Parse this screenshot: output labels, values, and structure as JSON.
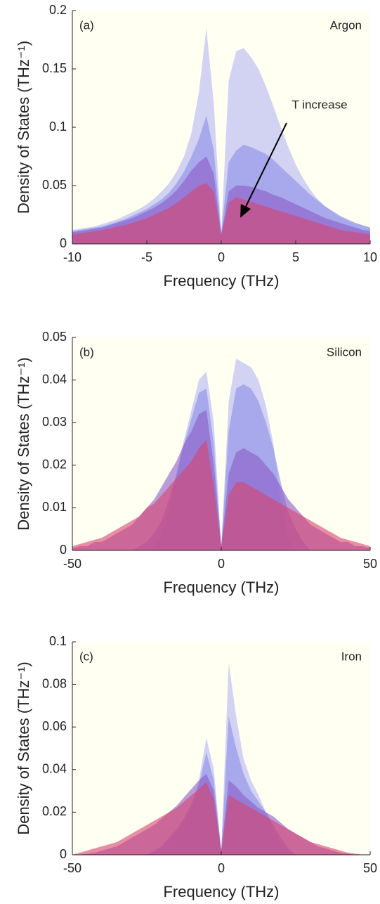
{
  "chart_data": [
    {
      "type": "area",
      "label": "(a)",
      "title": "Argon",
      "annotations": [
        "T increase"
      ],
      "xlabel": "Frequency (THz)",
      "ylabel": "Density of States (THz⁻¹)",
      "xlim": [
        -10,
        10
      ],
      "xticks": [
        -10,
        -5,
        0,
        5,
        10
      ],
      "ylim": [
        0,
        0.2
      ],
      "yticks": [
        0,
        0.05,
        0.1,
        0.15,
        0.2
      ],
      "opacity": 0.6,
      "x": [
        -10,
        -9.5,
        -9,
        -8.5,
        -8,
        -7.5,
        -7,
        -6.5,
        -6,
        -5.5,
        -5,
        -4.5,
        -4,
        -3.5,
        -3,
        -2.5,
        -2,
        -1.5,
        -1,
        -0.5,
        0,
        0.5,
        1,
        1.5,
        2,
        2.5,
        3,
        3.5,
        4,
        4.5,
        5,
        5.5,
        6,
        6.5,
        7,
        7.5,
        8,
        8.5,
        9,
        9.5,
        10
      ],
      "series": [
        {
          "color": "#b4b4f4",
          "values": [
            0.012,
            0.013,
            0.014,
            0.015,
            0.017,
            0.019,
            0.021,
            0.024,
            0.027,
            0.03,
            0.034,
            0.039,
            0.045,
            0.052,
            0.062,
            0.075,
            0.095,
            0.13,
            0.185,
            0.12,
            0.01,
            0.14,
            0.165,
            0.168,
            0.16,
            0.15,
            0.135,
            0.118,
            0.1,
            0.083,
            0.068,
            0.056,
            0.046,
            0.038,
            0.032,
            0.027,
            0.023,
            0.02,
            0.018,
            0.016,
            0.014
          ]
        },
        {
          "color": "#8c8ce8",
          "values": [
            0.011,
            0.012,
            0.013,
            0.014,
            0.015,
            0.017,
            0.019,
            0.021,
            0.024,
            0.027,
            0.03,
            0.034,
            0.038,
            0.044,
            0.052,
            0.062,
            0.075,
            0.09,
            0.11,
            0.08,
            0.01,
            0.07,
            0.08,
            0.085,
            0.083,
            0.08,
            0.077,
            0.072,
            0.066,
            0.06,
            0.054,
            0.048,
            0.042,
            0.037,
            0.032,
            0.028,
            0.024,
            0.021,
            0.018,
            0.016,
            0.014
          ]
        },
        {
          "color": "#8a5cc8",
          "values": [
            0.01,
            0.011,
            0.012,
            0.013,
            0.014,
            0.016,
            0.018,
            0.02,
            0.022,
            0.025,
            0.028,
            0.031,
            0.035,
            0.04,
            0.046,
            0.054,
            0.063,
            0.07,
            0.075,
            0.06,
            0.008,
            0.045,
            0.05,
            0.05,
            0.049,
            0.047,
            0.045,
            0.042,
            0.04,
            0.037,
            0.034,
            0.031,
            0.028,
            0.025,
            0.022,
            0.02,
            0.018,
            0.016,
            0.014,
            0.012,
            0.011
          ]
        },
        {
          "color": "#d9436e",
          "values": [
            0.008,
            0.009,
            0.01,
            0.011,
            0.012,
            0.013,
            0.015,
            0.016,
            0.018,
            0.02,
            0.022,
            0.025,
            0.028,
            0.031,
            0.035,
            0.04,
            0.045,
            0.05,
            0.052,
            0.045,
            0.008,
            0.035,
            0.04,
            0.038,
            0.036,
            0.034,
            0.032,
            0.03,
            0.028,
            0.026,
            0.024,
            0.022,
            0.02,
            0.018,
            0.016,
            0.014,
            0.012,
            0.011,
            0.01,
            0.009,
            0.008
          ]
        }
      ]
    },
    {
      "type": "area",
      "label": "(b)",
      "title": "Silicon",
      "xlabel": "Frequency (THz)",
      "ylabel": "Density of States (THz⁻¹)",
      "xlim": [
        -50,
        50
      ],
      "xticks": [
        -50,
        0,
        50
      ],
      "ylim": [
        0,
        0.05
      ],
      "yticks": [
        0,
        0.01,
        0.02,
        0.03,
        0.04,
        0.05
      ],
      "opacity": 0.6,
      "x": [
        -50,
        -47.5,
        -45,
        -42.5,
        -40,
        -37.5,
        -35,
        -32.5,
        -30,
        -27.5,
        -25,
        -22.5,
        -20,
        -17.5,
        -15,
        -12.5,
        -10,
        -7.5,
        -5,
        -2.5,
        0,
        2.5,
        5,
        7.5,
        10,
        12.5,
        15,
        17.5,
        20,
        22.5,
        25,
        27.5,
        30,
        32.5,
        35,
        37.5,
        40,
        42.5,
        45,
        47.5,
        50
      ],
      "series": [
        {
          "color": "#b4b4f4",
          "values": [
            0,
            0,
            0,
            0,
            0,
            0,
            0,
            0,
            0,
            0,
            0,
            0.001,
            0.004,
            0.01,
            0.018,
            0.026,
            0.033,
            0.04,
            0.042,
            0.03,
            0.001,
            0.035,
            0.045,
            0.044,
            0.043,
            0.04,
            0.034,
            0.025,
            0.012,
            0.003,
            0,
            0,
            0,
            0,
            0,
            0,
            0,
            0,
            0,
            0,
            0
          ]
        },
        {
          "color": "#8c8ce8",
          "values": [
            0,
            0,
            0,
            0,
            0,
            0,
            0,
            0,
            0,
            0.001,
            0.002,
            0.004,
            0.007,
            0.012,
            0.018,
            0.025,
            0.031,
            0.037,
            0.038,
            0.025,
            0.001,
            0.028,
            0.038,
            0.039,
            0.038,
            0.035,
            0.03,
            0.024,
            0.016,
            0.009,
            0.005,
            0.002,
            0,
            0,
            0,
            0,
            0,
            0,
            0,
            0,
            0
          ]
        },
        {
          "color": "#8a5cc8",
          "values": [
            0.0005,
            0.001,
            0.001,
            0.002,
            0.002,
            0.003,
            0.004,
            0.005,
            0.006,
            0.008,
            0.01,
            0.012,
            0.015,
            0.018,
            0.021,
            0.025,
            0.028,
            0.032,
            0.033,
            0.02,
            0.001,
            0.018,
            0.023,
            0.024,
            0.023,
            0.022,
            0.02,
            0.018,
            0.015,
            0.012,
            0.01,
            0.008,
            0.006,
            0.005,
            0.004,
            0.003,
            0.002,
            0.002,
            0.001,
            0.001,
            0.0005
          ]
        },
        {
          "color": "#d9436e",
          "values": [
            0.001,
            0.0015,
            0.002,
            0.0025,
            0.003,
            0.004,
            0.005,
            0.006,
            0.007,
            0.008,
            0.01,
            0.011,
            0.013,
            0.015,
            0.017,
            0.019,
            0.021,
            0.024,
            0.026,
            0.015,
            0.001,
            0.013,
            0.016,
            0.016,
            0.015,
            0.014,
            0.013,
            0.012,
            0.011,
            0.01,
            0.009,
            0.008,
            0.007,
            0.006,
            0.005,
            0.004,
            0.003,
            0.0025,
            0.002,
            0.0015,
            0.001
          ]
        }
      ]
    },
    {
      "type": "area",
      "label": "(c)",
      "title": "Iron",
      "xlabel": "Frequency (THz)",
      "ylabel": "Density of States (THz⁻¹)",
      "xlim": [
        -50,
        50
      ],
      "xticks": [
        -50,
        0,
        50
      ],
      "ylim": [
        0,
        0.1
      ],
      "yticks": [
        0,
        0.02,
        0.04,
        0.06,
        0.08,
        0.1
      ],
      "opacity": 0.6,
      "x": [
        -50,
        -47.5,
        -45,
        -42.5,
        -40,
        -37.5,
        -35,
        -32.5,
        -30,
        -27.5,
        -25,
        -22.5,
        -20,
        -17.5,
        -15,
        -12.5,
        -10,
        -7.5,
        -5,
        -2.5,
        0,
        2.5,
        5,
        7.5,
        10,
        12.5,
        15,
        17.5,
        20,
        22.5,
        25,
        27.5,
        30,
        32.5,
        35,
        37.5,
        40,
        42.5,
        45,
        47.5,
        50
      ],
      "series": [
        {
          "color": "#b4b4f4",
          "values": [
            0,
            0,
            0,
            0,
            0,
            0,
            0,
            0,
            0,
            0,
            0,
            0.001,
            0.003,
            0.006,
            0.01,
            0.015,
            0.022,
            0.035,
            0.055,
            0.04,
            0.002,
            0.09,
            0.065,
            0.045,
            0.035,
            0.028,
            0.02,
            0.012,
            0.005,
            0.002,
            0,
            0,
            0,
            0,
            0,
            0,
            0,
            0,
            0,
            0,
            0
          ]
        },
        {
          "color": "#8c8ce8",
          "values": [
            0,
            0,
            0,
            0,
            0,
            0,
            0,
            0,
            0,
            0,
            0,
            0.002,
            0.004,
            0.008,
            0.012,
            0.017,
            0.024,
            0.033,
            0.048,
            0.035,
            0.002,
            0.065,
            0.05,
            0.038,
            0.03,
            0.025,
            0.02,
            0.014,
            0.008,
            0.003,
            0,
            0,
            0,
            0,
            0,
            0,
            0,
            0,
            0,
            0,
            0
          ]
        },
        {
          "color": "#8a5cc8",
          "values": [
            0,
            0,
            0.0005,
            0.001,
            0.002,
            0.003,
            0.004,
            0.006,
            0.008,
            0.01,
            0.012,
            0.014,
            0.017,
            0.02,
            0.023,
            0.027,
            0.031,
            0.035,
            0.038,
            0.03,
            0.002,
            0.035,
            0.032,
            0.028,
            0.025,
            0.022,
            0.02,
            0.018,
            0.015,
            0.012,
            0.01,
            0.008,
            0.006,
            0.004,
            0.003,
            0.002,
            0.001,
            0.0005,
            0,
            0,
            0
          ]
        },
        {
          "color": "#d9436e",
          "values": [
            0,
            0.001,
            0.002,
            0.003,
            0.004,
            0.005,
            0.006,
            0.008,
            0.01,
            0.012,
            0.014,
            0.016,
            0.018,
            0.02,
            0.022,
            0.025,
            0.028,
            0.031,
            0.034,
            0.026,
            0.002,
            0.028,
            0.026,
            0.024,
            0.022,
            0.02,
            0.018,
            0.016,
            0.014,
            0.012,
            0.01,
            0.008,
            0.006,
            0.005,
            0.004,
            0.003,
            0.002,
            0.001,
            0.0005,
            0,
            0
          ]
        }
      ]
    }
  ]
}
